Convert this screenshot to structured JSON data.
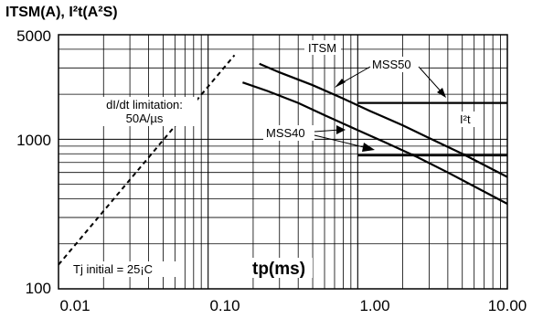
{
  "chart_data": {
    "type": "line",
    "title": "ITSM(A), I²t(A²S)",
    "xlabel": "tp(ms)",
    "x_scale": "log",
    "y_scale": "log",
    "xlim": [
      0.01,
      10
    ],
    "ylim": [
      100,
      5000
    ],
    "grid": true,
    "x_ticks": [
      "0.01",
      "0.10",
      "1.00",
      "10.00"
    ],
    "y_ticks": [
      "100",
      "1000",
      "5000"
    ],
    "series": [
      {
        "name": "MSS50",
        "quantity": "ITSM",
        "x": [
          0.22,
          0.3,
          0.5,
          0.8,
          1.2,
          2,
          3,
          5,
          10
        ],
        "y": [
          3200,
          2800,
          2300,
          1870,
          1550,
          1240,
          1020,
          800,
          560
        ]
      },
      {
        "name": "MSS40",
        "quantity": "ITSM",
        "x": [
          0.17,
          0.25,
          0.4,
          0.6,
          1,
          1.5,
          2.5,
          4,
          10
        ],
        "y": [
          2400,
          2100,
          1750,
          1450,
          1150,
          960,
          760,
          600,
          370
        ]
      },
      {
        "name": "MSS50",
        "quantity": "I²t",
        "x": [
          1,
          10
        ],
        "y": [
          1750,
          1750
        ]
      },
      {
        "name": "MSS40",
        "quantity": "I²t",
        "x": [
          1,
          10
        ],
        "y": [
          780,
          780
        ]
      },
      {
        "name": "dI/dt limitation",
        "style": "dashed",
        "x": [
          0.01,
          0.15
        ],
        "y": [
          145,
          3650
        ]
      }
    ],
    "annotations": {
      "itsm": "ITSM",
      "mss50": "MSS50",
      "mss40": "MSS40",
      "i2t": "I²t",
      "didt_line1": "dI/dt limitation:",
      "didt_line2": "50A/µs",
      "tj": "Tj initial = 25¡C"
    }
  }
}
